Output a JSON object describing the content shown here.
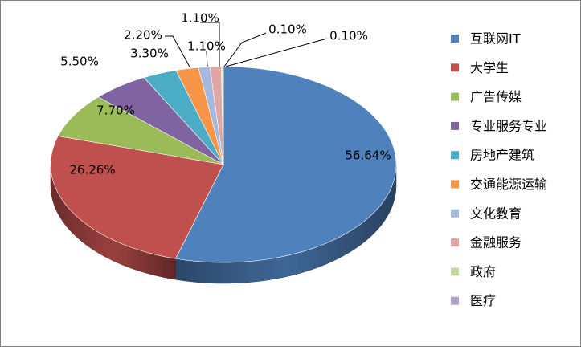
{
  "chart_data": {
    "type": "pie",
    "style": "3d-pie",
    "categories": [
      "互联网IT",
      "大学生",
      "广告传媒",
      "专业服务专业",
      "房地产建筑",
      "交通能源运输",
      "文化教育",
      "金融服务",
      "政府",
      "医疗"
    ],
    "values": [
      56.64,
      26.26,
      7.7,
      5.5,
      3.3,
      2.2,
      1.1,
      1.1,
      0.1,
      0.1
    ],
    "value_labels": [
      "56.64%",
      "26.26%",
      "7.70%",
      "5.50%",
      "3.30%",
      "2.20%",
      "1.10%",
      "1.10%",
      "0.10%",
      "0.10%"
    ],
    "colors": [
      "#4F81BD",
      "#C0504D",
      "#9BBB59",
      "#8064A2",
      "#4BACC6",
      "#F79646",
      "#A5B9DF",
      "#E0A5A4",
      "#C4D79B",
      "#B3A2C7"
    ],
    "legend_position": "right",
    "title": ""
  }
}
